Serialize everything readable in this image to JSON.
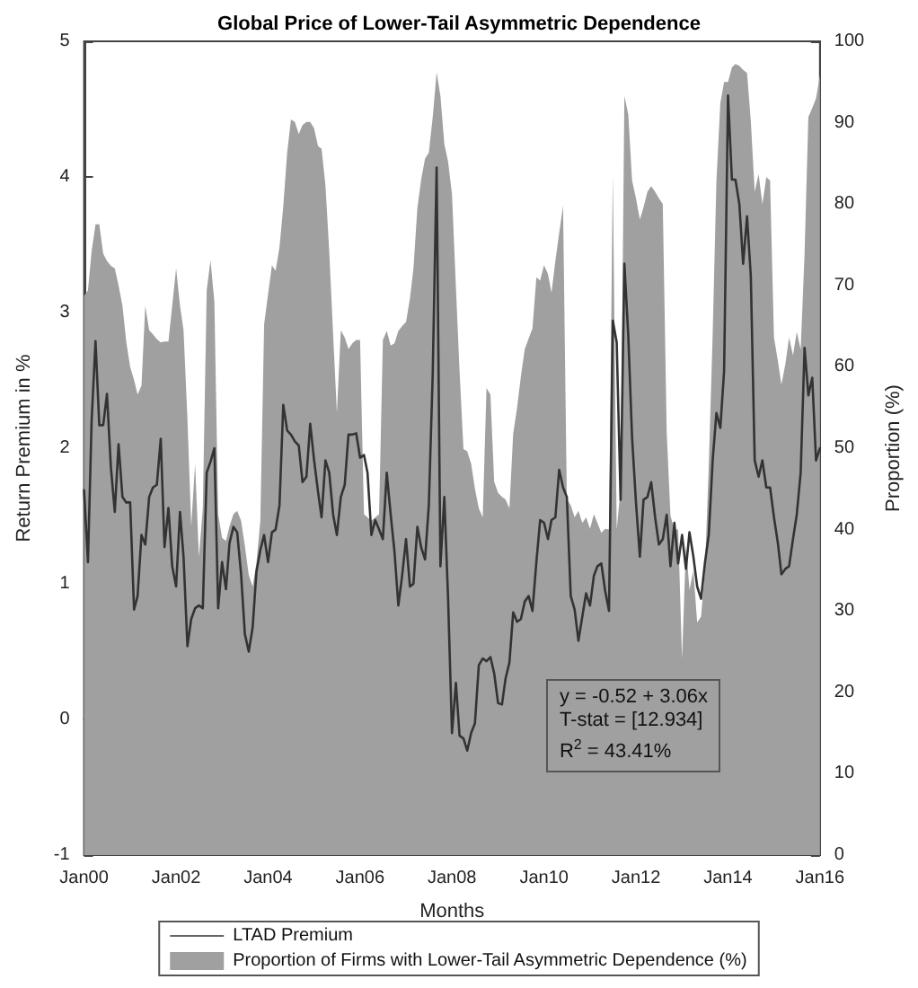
{
  "chart_data": {
    "type": "line",
    "title": "Global Price of Lower-Tail Asymmetric Dependence",
    "xlabel": "Months",
    "ylabel": "Return Premium in %",
    "y2label": "Proportion (%)",
    "annotations": [
      "y = -0.52 + 3.06x",
      "T-stat = [12.934]",
      "R$^{2}$ = 43.41%"
    ],
    "legend": "bottom",
    "x": [
      "2000-01",
      "2000-02",
      "2000-03",
      "2000-04",
      "2000-05",
      "2000-06",
      "2000-07",
      "2000-08",
      "2000-09",
      "2000-10",
      "2000-11",
      "2000-12",
      "2001-01",
      "2001-02",
      "2001-03",
      "2001-04",
      "2001-05",
      "2001-06",
      "2001-07",
      "2001-08",
      "2001-09",
      "2001-10",
      "2001-11",
      "2001-12",
      "2002-01",
      "2002-02",
      "2002-03",
      "2002-04",
      "2002-05",
      "2002-06",
      "2002-07",
      "2002-08",
      "2002-09",
      "2002-10",
      "2002-11",
      "2002-12",
      "2003-01",
      "2003-02",
      "2003-03",
      "2003-04",
      "2003-05",
      "2003-06",
      "2003-07",
      "2003-08",
      "2003-09",
      "2003-10",
      "2003-11",
      "2003-12",
      "2004-01",
      "2004-02",
      "2004-03",
      "2004-04",
      "2004-05",
      "2004-06",
      "2004-07",
      "2004-08",
      "2004-09",
      "2004-10",
      "2004-11",
      "2004-12",
      "2005-01",
      "2005-02",
      "2005-03",
      "2005-04",
      "2005-05",
      "2005-06",
      "2005-07",
      "2005-08",
      "2005-09",
      "2005-10",
      "2005-11",
      "2005-12",
      "2006-01",
      "2006-02",
      "2006-03",
      "2006-04",
      "2006-05",
      "2006-06",
      "2006-07",
      "2006-08",
      "2006-09",
      "2006-10",
      "2006-11",
      "2006-12",
      "2007-01",
      "2007-02",
      "2007-03",
      "2007-04",
      "2007-05",
      "2007-06",
      "2007-07",
      "2007-08",
      "2007-09",
      "2007-10",
      "2007-11",
      "2007-12",
      "2008-01",
      "2008-02",
      "2008-03",
      "2008-04",
      "2008-05",
      "2008-06",
      "2008-07",
      "2008-08",
      "2008-09",
      "2008-10",
      "2008-11",
      "2008-12",
      "2009-01",
      "2009-02",
      "2009-03",
      "2009-04",
      "2009-05",
      "2009-06",
      "2009-07",
      "2009-08",
      "2009-09",
      "2009-10",
      "2009-11",
      "2009-12",
      "2010-01",
      "2010-02",
      "2010-03",
      "2010-04",
      "2010-05",
      "2010-06",
      "2010-07",
      "2010-08",
      "2010-09",
      "2010-10",
      "2010-11",
      "2010-12",
      "2011-01",
      "2011-02",
      "2011-03",
      "2011-04",
      "2011-05",
      "2011-06",
      "2011-07",
      "2011-08",
      "2011-09",
      "2011-10",
      "2011-11",
      "2011-12",
      "2012-01",
      "2012-02",
      "2012-03",
      "2012-04",
      "2012-05",
      "2012-06",
      "2012-07",
      "2012-08",
      "2012-09",
      "2012-10",
      "2012-11",
      "2012-12",
      "2013-01",
      "2013-02",
      "2013-03",
      "2013-04",
      "2013-05",
      "2013-06",
      "2013-07",
      "2013-08",
      "2013-09",
      "2013-10",
      "2013-11",
      "2013-12",
      "2014-01",
      "2014-02",
      "2014-03",
      "2014-04",
      "2014-05",
      "2014-06",
      "2014-07",
      "2014-08",
      "2014-09",
      "2014-10",
      "2014-11",
      "2014-12",
      "2015-01",
      "2015-02",
      "2015-03",
      "2015-04",
      "2015-05",
      "2015-06",
      "2015-07",
      "2015-08",
      "2015-09",
      "2015-10",
      "2015-11",
      "2015-12",
      "2016-01"
    ],
    "series": [
      {
        "name": "LTAD Premium",
        "color": "#333333",
        "values": [
          1.69,
          1.16,
          2.2,
          2.79,
          2.17,
          2.17,
          2.4,
          1.86,
          1.53,
          2.03,
          1.64,
          1.6,
          1.6,
          0.81,
          0.91,
          1.36,
          1.29,
          1.64,
          1.71,
          1.73,
          2.07,
          1.27,
          1.56,
          1.13,
          0.98,
          1.53,
          1.2,
          0.54,
          0.74,
          0.82,
          0.84,
          0.82,
          1.82,
          1.9,
          2.0,
          0.82,
          1.16,
          0.96,
          1.3,
          1.42,
          1.38,
          1.07,
          0.63,
          0.5,
          0.68,
          1.09,
          1.25,
          1.36,
          1.16,
          1.38,
          1.4,
          1.58,
          2.32,
          2.13,
          2.1,
          2.05,
          2.02,
          1.75,
          1.79,
          2.18,
          1.91,
          1.68,
          1.49,
          1.91,
          1.82,
          1.51,
          1.36,
          1.64,
          1.73,
          2.1,
          2.1,
          2.11,
          1.93,
          1.95,
          1.82,
          1.36,
          1.47,
          1.4,
          1.33,
          1.82,
          1.51,
          1.24,
          0.84,
          1.06,
          1.33,
          0.98,
          1.0,
          1.42,
          1.27,
          1.18,
          1.58,
          2.55,
          4.07,
          1.13,
          1.64,
          0.89,
          -0.1,
          0.27,
          -0.12,
          -0.14,
          -0.23,
          -0.1,
          -0.03,
          0.4,
          0.45,
          0.43,
          0.46,
          0.34,
          0.12,
          0.11,
          0.3,
          0.42,
          0.79,
          0.72,
          0.74,
          0.87,
          0.91,
          0.8,
          1.16,
          1.47,
          1.45,
          1.33,
          1.47,
          1.49,
          1.84,
          1.71,
          1.64,
          0.91,
          0.81,
          0.58,
          0.76,
          0.93,
          0.84,
          1.06,
          1.13,
          1.15,
          0.95,
          0.8,
          2.94,
          2.78,
          1.62,
          3.36,
          2.83,
          2.08,
          1.6,
          1.2,
          1.62,
          1.64,
          1.75,
          1.49,
          1.29,
          1.33,
          1.51,
          1.13,
          1.45,
          1.15,
          1.36,
          1.11,
          1.38,
          1.2,
          0.98,
          0.89,
          1.15,
          1.36,
          1.91,
          2.26,
          2.15,
          2.57,
          4.6,
          3.98,
          3.98,
          3.8,
          3.36,
          3.71,
          3.27,
          1.91,
          1.79,
          1.91,
          1.71,
          1.71,
          1.49,
          1.3,
          1.07,
          1.11,
          1.13,
          1.33,
          1.51,
          1.82,
          2.74,
          2.39,
          2.52,
          1.91,
          2.0
        ]
      },
      {
        "name": "Proportion of Firms with Lower-Tail Asymmetric Dependence (%)",
        "type": "area",
        "axis": "y2",
        "color": "#a0a0a0",
        "values": [
          68.7,
          69.4,
          74.2,
          77.5,
          77.5,
          73.9,
          73,
          72.4,
          72.1,
          70,
          67.5,
          63.1,
          60,
          58.4,
          56.6,
          57.7,
          67.5,
          64.5,
          64,
          63.4,
          63,
          63.1,
          63.1,
          67.5,
          72.1,
          67.5,
          64.5,
          53.6,
          40.4,
          48.1,
          36.6,
          42.6,
          69.4,
          73.1,
          68.0,
          41.9,
          39.0,
          38.6,
          40.4,
          41.9,
          42.3,
          41.1,
          38,
          34.4,
          33.0,
          35.9,
          41.1,
          65.2,
          68.9,
          72.5,
          71.8,
          74.7,
          79.7,
          86.3,
          90.4,
          90.1,
          88.6,
          89.7,
          90.1,
          90.1,
          89.3,
          87.1,
          86.8,
          82.3,
          74.2,
          63.9,
          54.3,
          64.5,
          63.6,
          62.2,
          62.9,
          63.3,
          63.3,
          41.9,
          41.5,
          41.1,
          41.5,
          41.9,
          63.3,
          64.4,
          62.6,
          62.9,
          64.4,
          65,
          65.5,
          68.4,
          72.1,
          79.5,
          83,
          85.6,
          86.3,
          90.7,
          96.2,
          93.3,
          87.4,
          85.2,
          81.2,
          69.8,
          59.5,
          49.9,
          49.6,
          48.1,
          45,
          42.6,
          41.5,
          57.4,
          56.6,
          45.9,
          44.5,
          44,
          43.7,
          42.6,
          51.8,
          55,
          58.8,
          62.2,
          63.5,
          64.7,
          71.0,
          70.6,
          72.5,
          71.4,
          69.1,
          73,
          76.4,
          79.8,
          43.7,
          43.0,
          41.5,
          42.3,
          40.8,
          41.5,
          40.1,
          41.9,
          40.8,
          39.6,
          40.1,
          40,
          83.7,
          40,
          45,
          93.3,
          91.0,
          82.9,
          80.7,
          78.1,
          79.6,
          81.5,
          82.2,
          81.5,
          80.7,
          80.0,
          52.0,
          41.7,
          40,
          40,
          24.1,
          38,
          32.6,
          35,
          28.6,
          29.3,
          34.8,
          47.7,
          63.9,
          82.9,
          92.4,
          95.0,
          95.0,
          96.8,
          97.2,
          97,
          96.5,
          96.1,
          90.2,
          81.5,
          83.7,
          80.0,
          83.3,
          82.9,
          63.6,
          60.7,
          57.8,
          60.3,
          63.6,
          61.4,
          64.3,
          62.1,
          73.9,
          90.7,
          91.8,
          93,
          95.8
        ]
      }
    ],
    "xlim": [
      "2000-01",
      "2016-01"
    ],
    "xticks": [
      {
        "value": "2000-01",
        "label": "Jan00"
      },
      {
        "value": "2002-01",
        "label": "Jan02"
      },
      {
        "value": "2004-01",
        "label": "Jan04"
      },
      {
        "value": "2006-01",
        "label": "Jan06"
      },
      {
        "value": "2008-01",
        "label": "Jan08"
      },
      {
        "value": "2010-01",
        "label": "Jan10"
      },
      {
        "value": "2012-01",
        "label": "Jan12"
      },
      {
        "value": "2014-01",
        "label": "Jan14"
      },
      {
        "value": "2016-01",
        "label": "Jan16"
      }
    ],
    "ylim": [
      -1,
      5
    ],
    "yticks": [
      -1,
      0,
      1,
      2,
      3,
      4,
      5
    ],
    "y2lim": [
      0,
      100
    ],
    "y2ticks": [
      0,
      10,
      20,
      30,
      40,
      50,
      60,
      70,
      80,
      90,
      100
    ]
  }
}
